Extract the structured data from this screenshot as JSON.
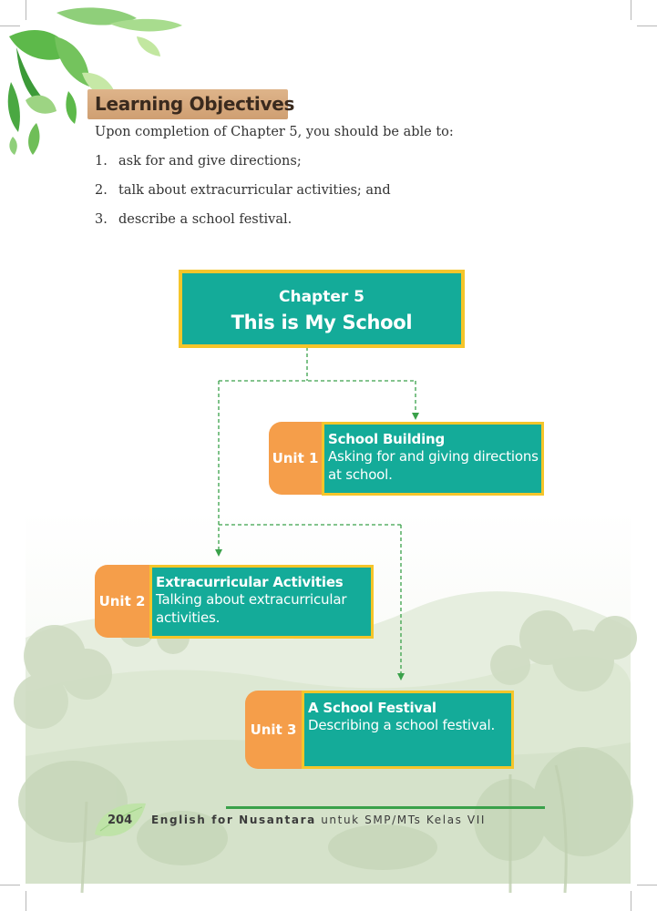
{
  "learning_objectives": {
    "heading": "Learning Objectives",
    "intro": "Upon completion of Chapter 5, you should be able to:",
    "items": [
      {
        "number": "1.",
        "text": "ask for and give directions;"
      },
      {
        "number": "2.",
        "text": "talk about extracurricular activities; and"
      },
      {
        "number": "3.",
        "text": "describe a school festival."
      }
    ]
  },
  "chapter": {
    "label": "Chapter 5",
    "title": "This is My School"
  },
  "units": [
    {
      "tab": "Unit 1",
      "title": "School Building",
      "desc_line1": "Asking for and giving directions",
      "desc_line2": "at school."
    },
    {
      "tab": "Unit 2",
      "title": "Extracurricular Activities",
      "desc_line1": "Talking about extracurricular",
      "desc_line2": "activities."
    },
    {
      "tab": "Unit 3",
      "title": "A School Festival",
      "desc_line1": "Describing a school festival.",
      "desc_line2": ""
    }
  ],
  "footer": {
    "page_number": "204",
    "book_title_bold": "English for Nusantara",
    "book_title_rest": " untuk SMP/MTs Kelas VII"
  },
  "colors": {
    "teal": "#14ab99",
    "yellow_border": "#f5c52a",
    "orange_tab": "#f59e4a",
    "connector_green": "#3aa14a",
    "header_tan": "#d7aa7d"
  }
}
